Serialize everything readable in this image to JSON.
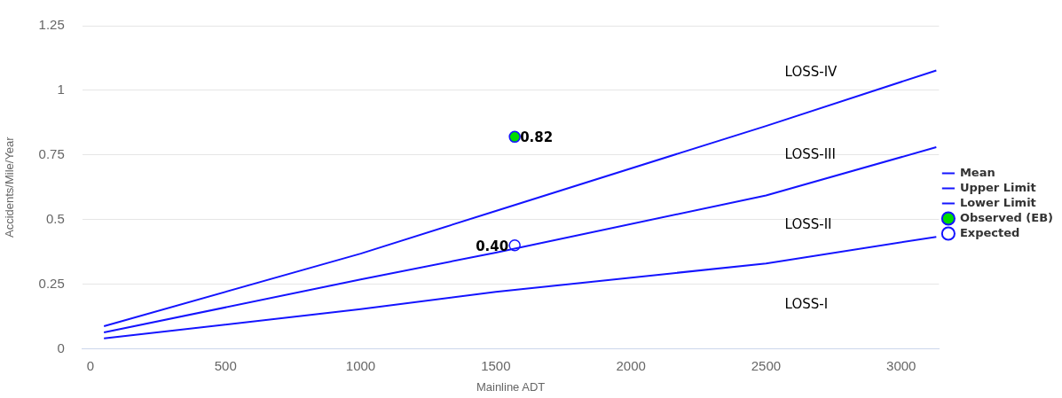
{
  "chart_data": {
    "type": "line",
    "xlabel": "Mainline ADT",
    "ylabel": "Accidents/Mile/Year",
    "xlim": [
      -30,
      3140
    ],
    "xticks": [
      0,
      500,
      1000,
      1500,
      2000,
      2500,
      3000
    ],
    "ylim": [
      0,
      1.25
    ],
    "yticks": [
      0,
      0.25,
      0.5,
      0.75,
      1,
      1.25
    ],
    "grid": "y",
    "legend": "right",
    "line_style": "solid",
    "series": [
      {
        "name": "Mean",
        "color": "#1414ff",
        "marker": "none",
        "x": [
          50,
          1000,
          1500,
          2500,
          3130
        ],
        "values": [
          0.063,
          0.268,
          0.372,
          0.593,
          0.78
        ]
      },
      {
        "name": "Upper Limit",
        "color": "#1414ff",
        "marker": "none",
        "x": [
          50,
          1000,
          1500,
          2500,
          3130
        ],
        "values": [
          0.087,
          0.368,
          0.533,
          0.862,
          1.077
        ]
      },
      {
        "name": "Lower Limit",
        "color": "#1414ff",
        "marker": "none",
        "x": [
          50,
          1000,
          1500,
          2500,
          3130
        ],
        "values": [
          0.04,
          0.153,
          0.22,
          0.33,
          0.433
        ]
      },
      {
        "name": "Observed (EB)",
        "type": "scatter",
        "color": "#00dd00",
        "marker": "circle",
        "x": [
          1570
        ],
        "values": [
          0.82
        ],
        "value_labels": [
          "0.82"
        ]
      },
      {
        "name": "Expected",
        "type": "scatter",
        "color": "#ffffff",
        "marker": "circle",
        "x": [
          1570
        ],
        "values": [
          0.4
        ],
        "value_labels": [
          "0.40"
        ]
      }
    ],
    "annotations": [
      "LOSS-IV",
      "LOSS-III",
      "LOSS-II",
      "LOSS-I"
    ]
  }
}
